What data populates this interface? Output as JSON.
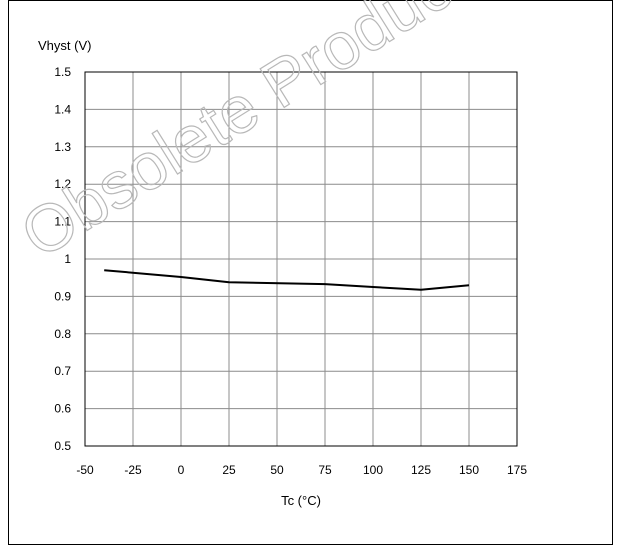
{
  "watermark_text": "Obsolete Product",
  "chart_data": {
    "type": "line",
    "title": "",
    "ylabel": "Vhyst (V)",
    "xlabel": "Tc (°C)",
    "xlim": [
      -50,
      175
    ],
    "ylim": [
      0.5,
      1.5
    ],
    "xticks": [
      -50,
      -25,
      0,
      25,
      50,
      75,
      100,
      125,
      150,
      175
    ],
    "yticks": [
      0.5,
      0.6,
      0.7,
      0.8,
      0.9,
      1,
      1.1,
      1.2,
      1.3,
      1.4,
      1.5
    ],
    "grid": true,
    "series": [
      {
        "x": [
          -40,
          0,
          25,
          75,
          100,
          125,
          150
        ],
        "y": [
          0.97,
          0.952,
          0.938,
          0.933,
          0.925,
          0.918,
          0.93
        ],
        "color": "#000000"
      }
    ]
  }
}
